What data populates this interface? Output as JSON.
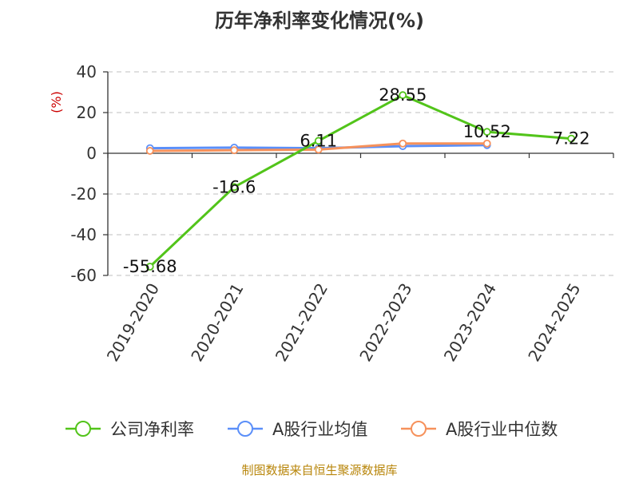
{
  "chart_data": {
    "type": "line",
    "title": "历年净利率变化情况(%)",
    "ylabel": "(%)",
    "xlabel": "",
    "categories": [
      "2019-2020",
      "2020-2021",
      "2021-2022",
      "2022-2023",
      "2023-2024",
      "2024-2025"
    ],
    "ylim": [
      -60,
      40
    ],
    "yticks": [
      40,
      20,
      0,
      -20,
      -40,
      -60
    ],
    "grid": true,
    "legend_position": "bottom",
    "series": [
      {
        "name": "公司净利率",
        "color": "#52c41a",
        "values": [
          -55.68,
          -16.6,
          6.11,
          28.55,
          10.52,
          7.22
        ],
        "labels": [
          "-55.68",
          "-16.6",
          "6.11",
          "28.55",
          "10.52",
          "7.22"
        ]
      },
      {
        "name": "A股行业均值",
        "color": "#5b8ff9",
        "values": [
          2.5,
          2.8,
          2.5,
          3.5,
          4.0,
          null
        ]
      },
      {
        "name": "A股行业中位数",
        "color": "#f6915b",
        "values": [
          1.2,
          1.5,
          1.8,
          4.8,
          4.8,
          null
        ]
      }
    ]
  },
  "source": "制图数据来自恒生聚源数据库"
}
